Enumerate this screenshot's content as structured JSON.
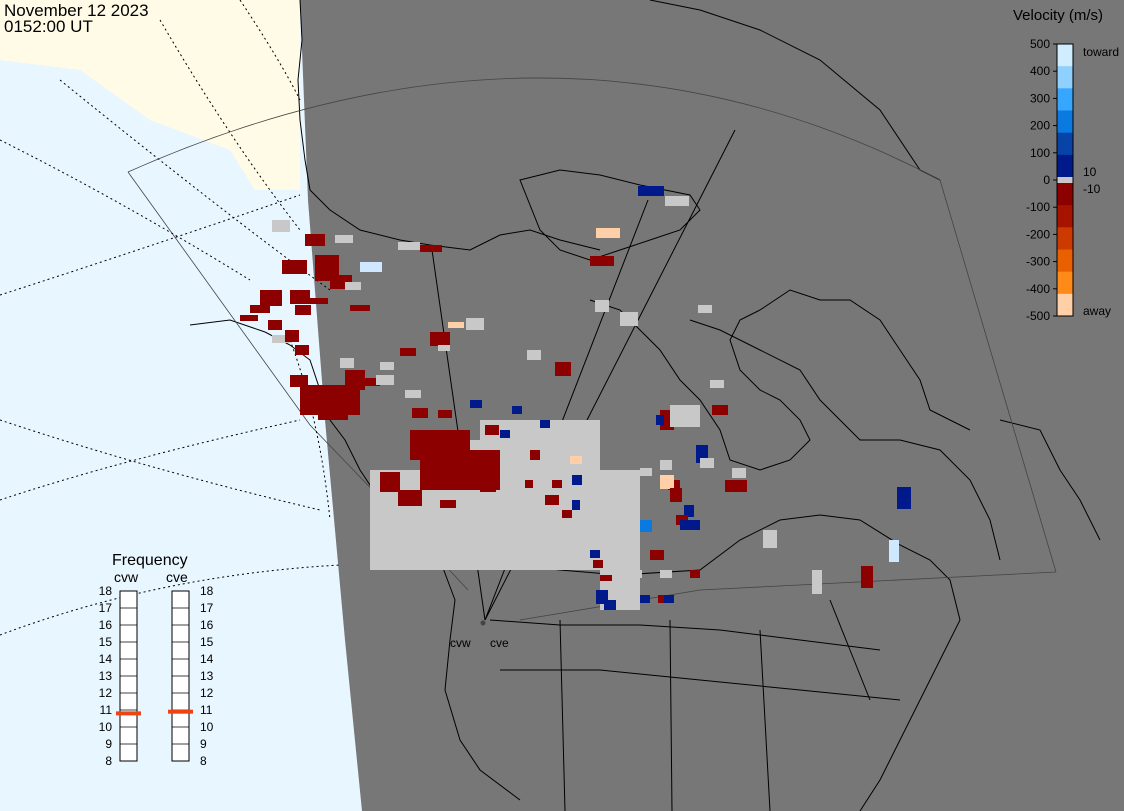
{
  "header": {
    "date": "November 12 2023",
    "time": "0152:00 UT"
  },
  "colorbar": {
    "title": "Velocity (m/s)",
    "ticks": [
      "500",
      "400",
      "300",
      "200",
      "100",
      "0",
      "-100",
      "-200",
      "-300",
      "-400",
      "-500"
    ],
    "near_zero": [
      "10",
      "-10"
    ],
    "toward_label": "toward",
    "away_label": "away",
    "colors_toward": [
      "#d0ecff",
      "#8fd0ff",
      "#36a6ff",
      "#0a7ae0",
      "#0844a8",
      "#001a8c"
    ],
    "colors_away": [
      "#8c0000",
      "#a61400",
      "#cc3a00",
      "#e86000",
      "#ff8a1a",
      "#ffd0a8"
    ],
    "low_velocity_color": "#c8c8c8"
  },
  "frequency_panel": {
    "title": "Frequency",
    "radars": [
      "cvw",
      "cve"
    ],
    "scale": [
      "18",
      "17",
      "16",
      "15",
      "14",
      "13",
      "12",
      "11",
      "10",
      "9",
      "8"
    ],
    "cvw_mhz": 10.8,
    "cve_mhz": 10.9,
    "marker_color": "#ee4411"
  },
  "map": {
    "site_labels": [
      "cvw",
      "cve"
    ],
    "colors": {
      "ocean_dark": "#777777",
      "ocean_light": "#e8f6ff",
      "land_daylight": "#fffbe6",
      "fov_line": "#000000"
    }
  }
}
